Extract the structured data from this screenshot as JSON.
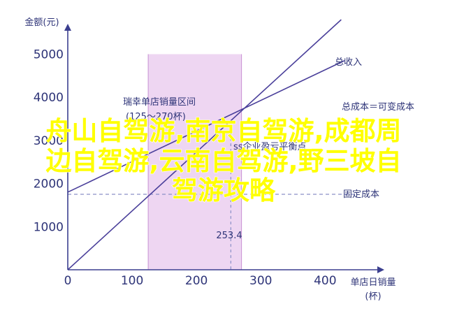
{
  "chart_data": {
    "type": "line",
    "xlabel": [
      "单店日销量",
      "(杯)"
    ],
    "ylabel": "金额(元)",
    "xlim": [
      0,
      450
    ],
    "ylim": [
      0,
      6000
    ],
    "x_ticks": [
      0,
      100,
      200,
      300,
      400
    ],
    "y_ticks": [
      1000,
      2000,
      3000,
      4000,
      5000
    ],
    "series": [
      {
        "name": "总收入",
        "x": [
          0,
          425
        ],
        "values": [
          0,
          5800
        ]
      },
      {
        "name": "总成本＝可变成本",
        "x": [
          0,
          430
        ],
        "values": [
          1800,
          4850
        ]
      },
      {
        "name": "固定成本",
        "x": [
          0,
          450
        ],
        "values": [
          1750,
          1750
        ]
      }
    ],
    "band": {
      "label": [
        "瑞幸单店销量区间",
        "(125～270杯)"
      ],
      "range": [
        125,
        270
      ],
      "color": "#eed6f2"
    },
    "breakeven": {
      "label": "253.4",
      "x": 253.4,
      "value": 3450
    },
    "annotations": [
      "ss企业盈亏平衡点"
    ],
    "colors": {
      "axis": "#3b3f8f",
      "line": "#4a3f9a",
      "fixed": "#8a8fc7",
      "band": "#eed6f2",
      "band_edge": "#c790d2"
    }
  },
  "watermark": {
    "lines": [
      "舟山自驾游,南京自驾游,成都周",
      "边自驾游,云南自驾游,野三坡自",
      "驾游攻略"
    ]
  }
}
